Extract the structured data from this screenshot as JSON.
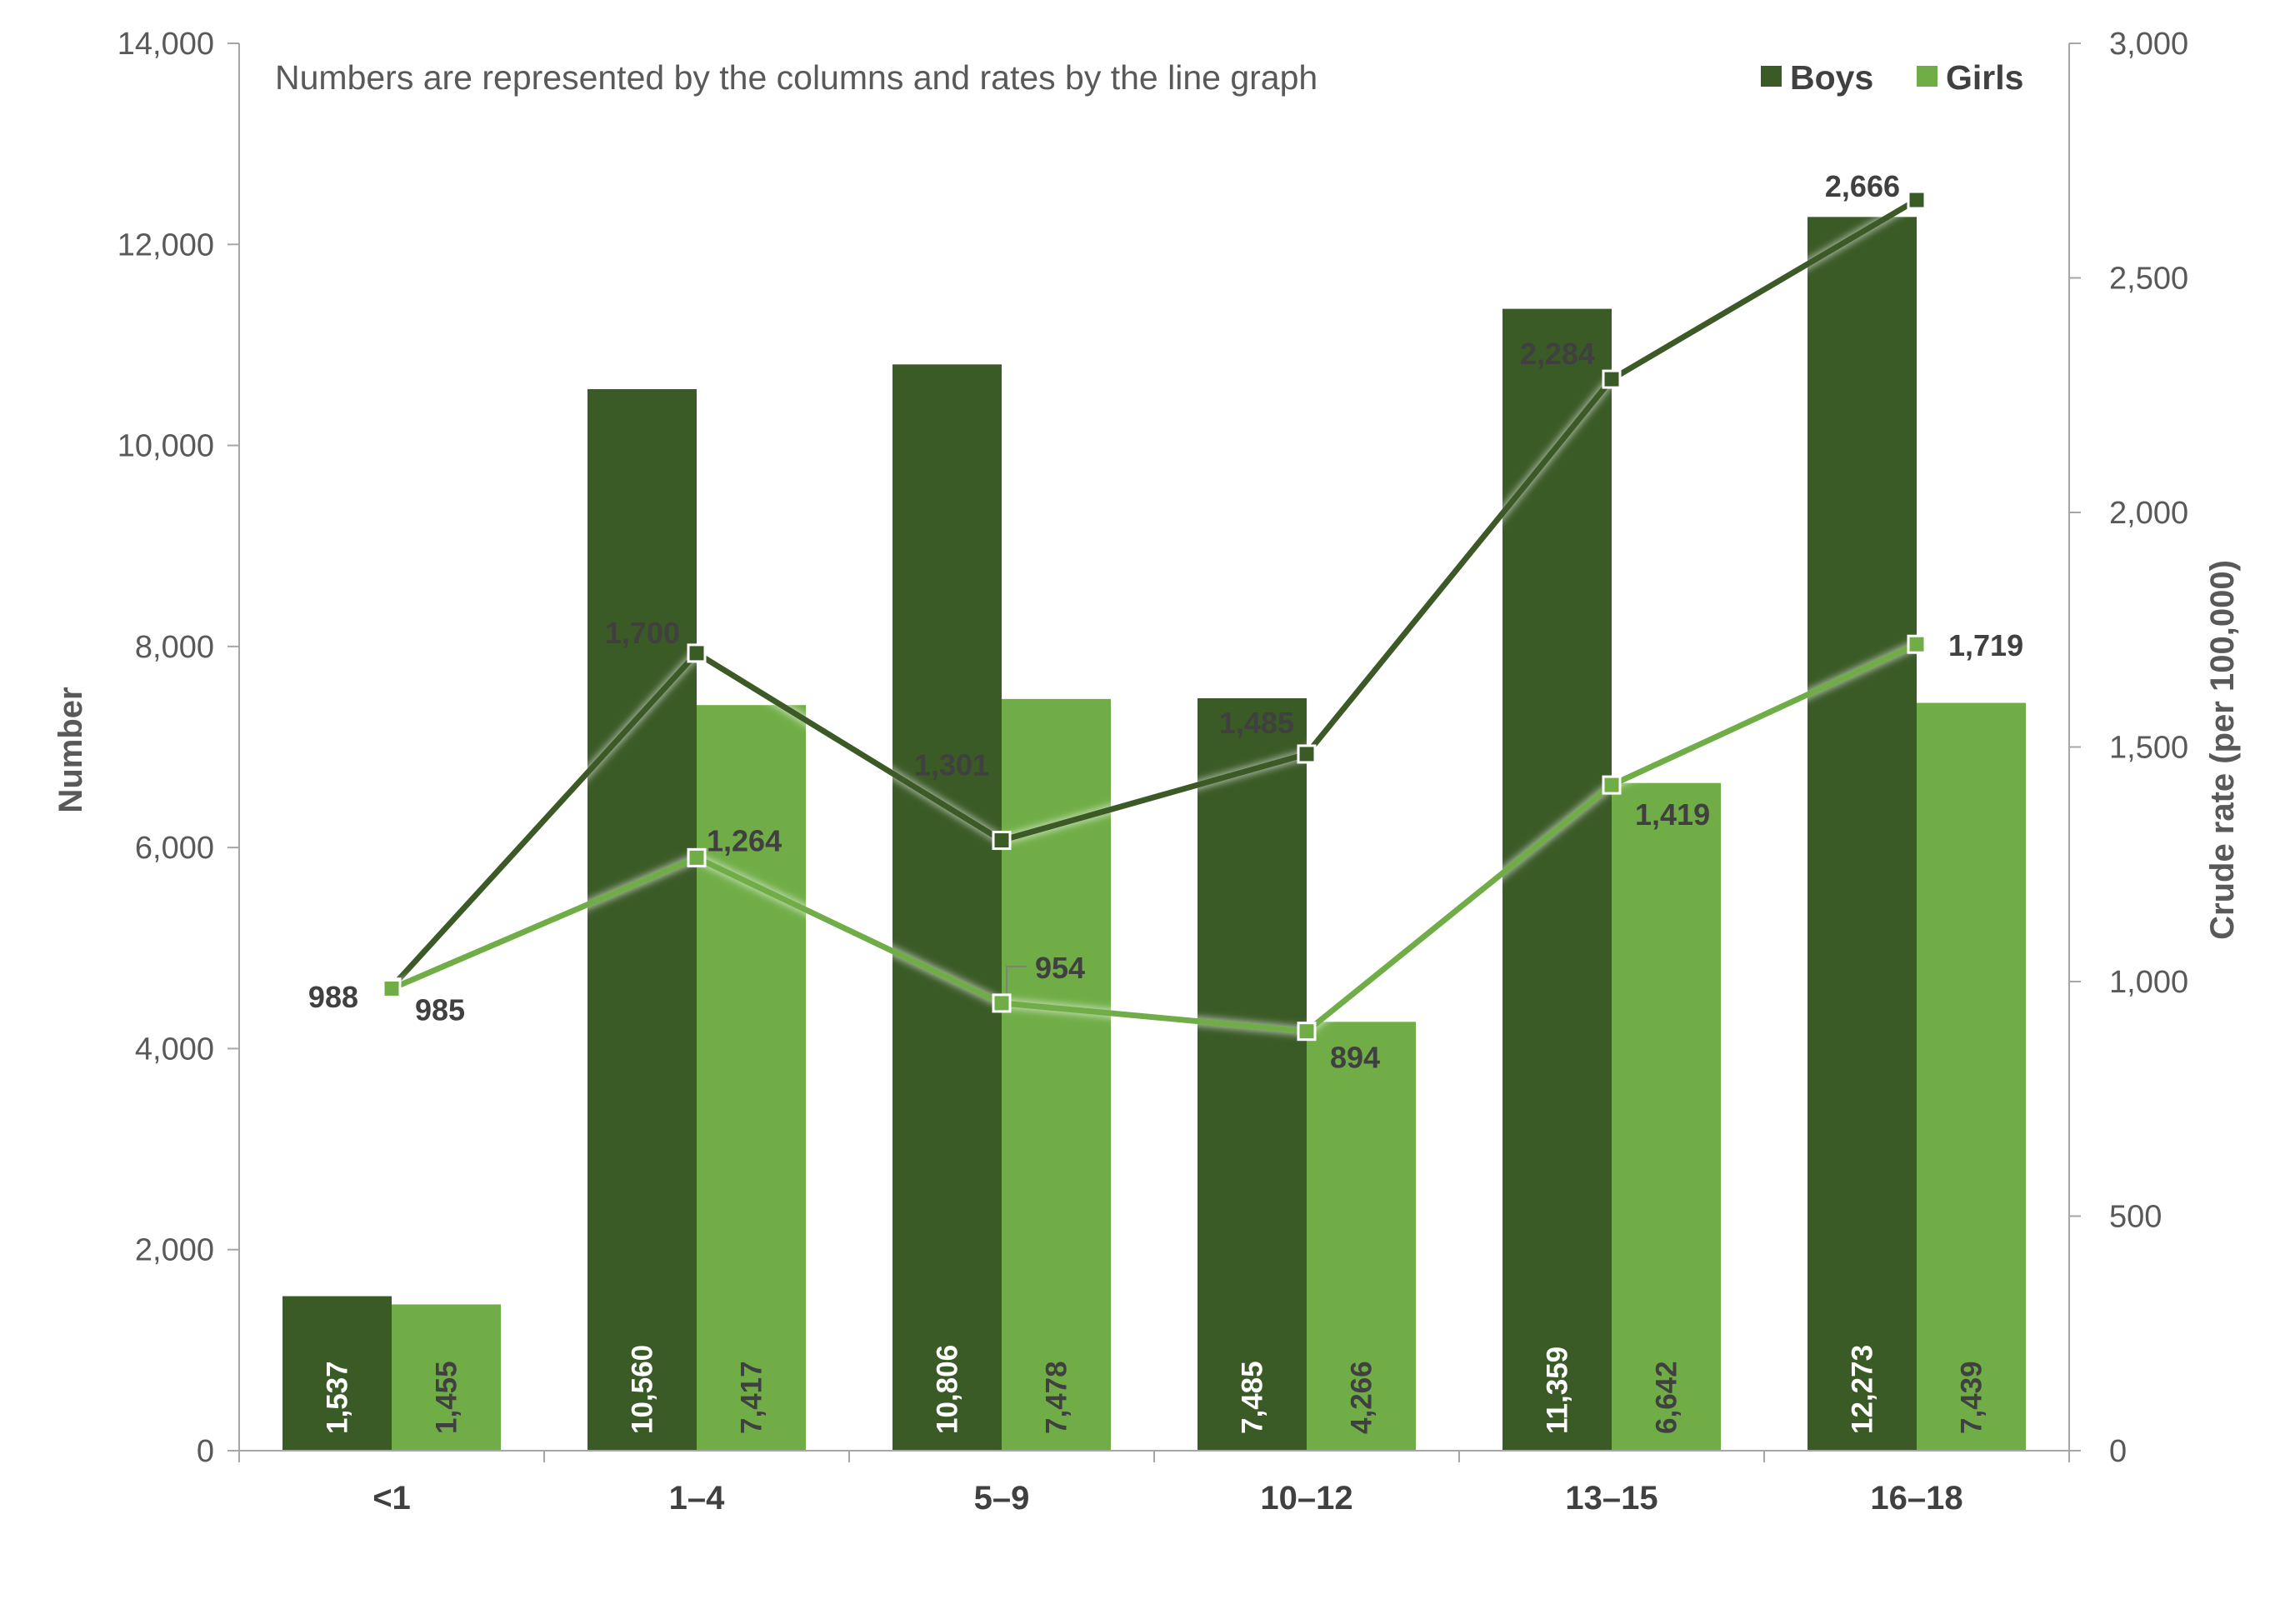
{
  "colors": {
    "boys": "#3a5a26",
    "girls": "#70ad47",
    "axis": "#a6a6a6",
    "text": "#404040",
    "muted": "#595959"
  },
  "chart_data": {
    "type": "bar",
    "note": "Numbers are represented by the columns and rates by the line graph",
    "categories": [
      "<1",
      "1–4",
      "5–9",
      "10–12",
      "13–15",
      "16–18"
    ],
    "ylabel": "Number",
    "y2label": "Crude rate (per 100,000)",
    "ylim": [
      0,
      14000
    ],
    "y2lim": [
      0,
      3000
    ],
    "yticks": [
      "0",
      "2,000",
      "4,000",
      "6,000",
      "8,000",
      "10,000",
      "12,000",
      "14,000"
    ],
    "y2ticks": [
      "0",
      "500",
      "1,000",
      "1,500",
      "2,000",
      "2,500",
      "3,000"
    ],
    "grid": false,
    "legend_position": "top-right",
    "legend": [
      "Boys",
      "Girls"
    ],
    "bars": [
      {
        "name": "Boys",
        "values": [
          1537,
          10560,
          10806,
          7485,
          11359,
          12273
        ],
        "labels": [
          "1,537",
          "10,560",
          "10,806",
          "7,485",
          "11,359",
          "12,273"
        ]
      },
      {
        "name": "Girls",
        "values": [
          1455,
          7417,
          7478,
          4266,
          6642,
          7439
        ],
        "labels": [
          "1,455",
          "7,417",
          "7,478",
          "4,266",
          "6,642",
          "7,439"
        ]
      }
    ],
    "lines": [
      {
        "name": "Boys",
        "axis": "right",
        "values": [
          988,
          1700,
          1301,
          1485,
          2284,
          2666
        ],
        "labels": [
          "988",
          "1,700",
          "1,301",
          "1,485",
          "2,284",
          "2,666"
        ]
      },
      {
        "name": "Girls",
        "axis": "right",
        "values": [
          985,
          1264,
          954,
          894,
          1419,
          1719
        ],
        "labels": [
          "985",
          "1,264",
          "954",
          "894",
          "1,419",
          "1,719"
        ]
      }
    ]
  }
}
